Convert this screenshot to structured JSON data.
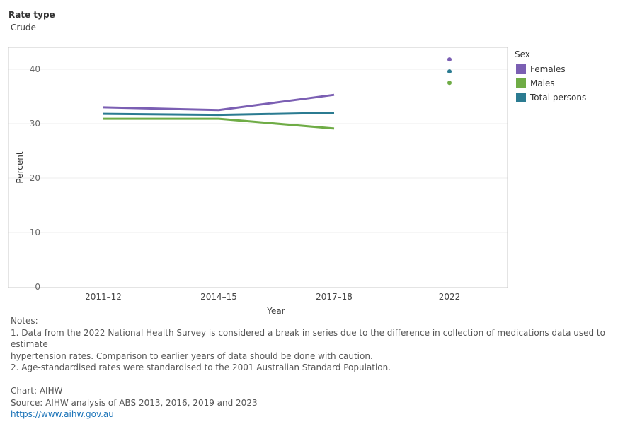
{
  "filter": {
    "label": "Rate type",
    "value": "Crude"
  },
  "chart_data": {
    "type": "line",
    "categories": [
      "2011–12",
      "2014–15",
      "2017–18",
      "2022"
    ],
    "series": [
      {
        "name": "Females",
        "color": "#7b5fb3",
        "values": [
          33.0,
          32.5,
          35.3,
          null
        ],
        "points": [
          null,
          null,
          null,
          41.8
        ]
      },
      {
        "name": "Males",
        "color": "#6fac46",
        "values": [
          30.9,
          30.9,
          29.1,
          null
        ],
        "points": [
          null,
          null,
          null,
          37.5
        ]
      },
      {
        "name": "Total persons",
        "color": "#2b7b91",
        "values": [
          31.8,
          31.6,
          32.0,
          null
        ],
        "points": [
          null,
          null,
          null,
          39.6
        ]
      }
    ],
    "xlabel": "Year",
    "ylabel": "Percent",
    "ylim": [
      0,
      44
    ],
    "yticks": [
      0,
      10,
      20,
      30,
      40
    ],
    "grid": true,
    "legend_title": "Sex",
    "legend_position": "right"
  },
  "notes": {
    "heading": "Notes:",
    "lines": [
      "1. Data from the 2022 National Health Survey is considered a break in series due to the difference in collection of medications data used to estimate",
      "hypertension rates. Comparison to earlier years of data should be done with caution.",
      "2. Age-standardised rates were standardised to the 2001 Australian Standard Population."
    ]
  },
  "credits": {
    "chart": "Chart: AIHW",
    "source": "Source: AIHW analysis of ABS 2013, 2016, 2019 and 2023",
    "url": "https://www.aihw.gov.au"
  }
}
